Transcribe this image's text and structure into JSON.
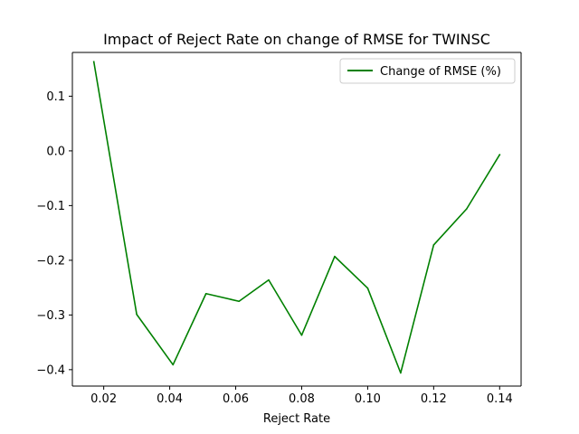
{
  "chart_data": {
    "type": "line",
    "title": "Impact of Reject Rate on change of RMSE for TWINSC",
    "xlabel": "Reject Rate",
    "ylabel": "",
    "xlim": [
      0.0105,
      0.1465
    ],
    "ylim": [
      -0.43,
      0.18
    ],
    "x_ticks": [
      0.02,
      0.04,
      0.06,
      0.08,
      0.1,
      0.12,
      0.14
    ],
    "x_tick_labels": [
      "0.02",
      "0.04",
      "0.06",
      "0.08",
      "0.10",
      "0.12",
      "0.14"
    ],
    "y_ticks": [
      0.1,
      0.0,
      -0.1,
      -0.2,
      -0.3,
      -0.4
    ],
    "y_tick_labels": [
      "0.1",
      "0.0",
      "−0.1",
      "−0.2",
      "−0.3",
      "−0.4"
    ],
    "grid": false,
    "legend_position": "top-right",
    "series": [
      {
        "name": "Change of RMSE (%)",
        "color": "#008000",
        "x": [
          0.017,
          0.03,
          0.041,
          0.051,
          0.061,
          0.07,
          0.08,
          0.09,
          0.1,
          0.11,
          0.12,
          0.13,
          0.14
        ],
        "y": [
          0.163,
          -0.299,
          -0.391,
          -0.261,
          -0.275,
          -0.236,
          -0.337,
          -0.193,
          -0.251,
          -0.406,
          -0.172,
          -0.106,
          -0.007
        ]
      }
    ]
  }
}
